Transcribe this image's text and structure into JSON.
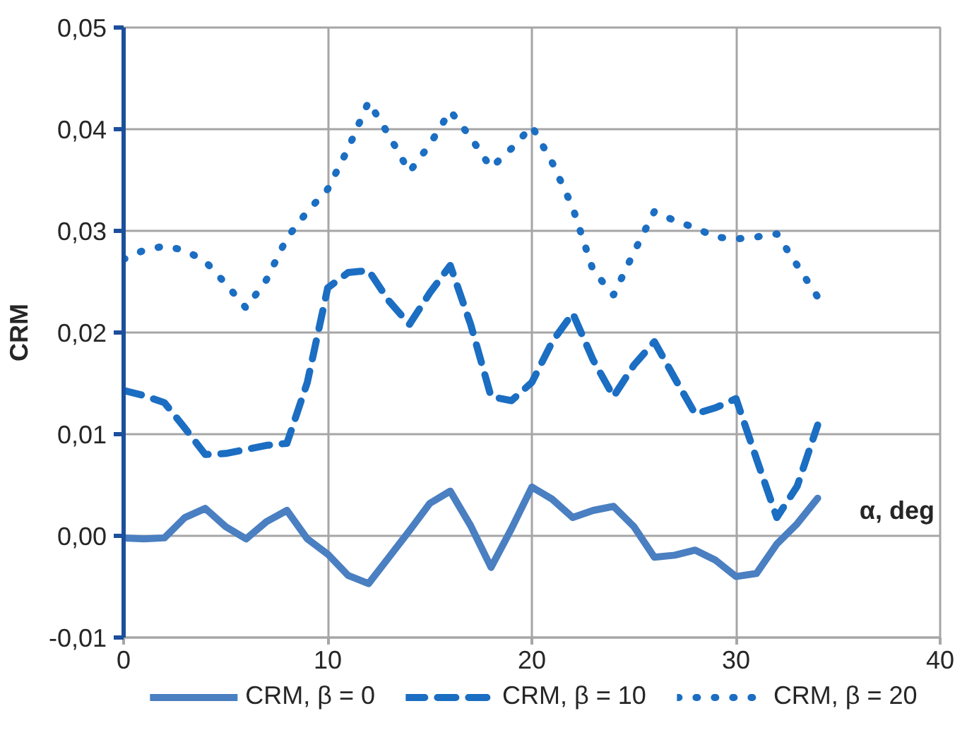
{
  "chart_data": {
    "type": "line",
    "xlabel": "α, deg",
    "ylabel": "CRM",
    "x": [
      0,
      1,
      2,
      3,
      4,
      5,
      6,
      7,
      8,
      9,
      10,
      11,
      12,
      13,
      14,
      15,
      16,
      17,
      18,
      19,
      20,
      21,
      22,
      23,
      24,
      25,
      26,
      27,
      28,
      29,
      30,
      31,
      32,
      33,
      34
    ],
    "xlim": [
      0,
      40
    ],
    "xticks": [
      0,
      10,
      20,
      30,
      40
    ],
    "ylim": [
      -0.01,
      0.05
    ],
    "yticks": [
      {
        "value": -0.01,
        "label": "-0,01"
      },
      {
        "value": 0,
        "label": "0,00"
      },
      {
        "value": 0.01,
        "label": "0,01"
      },
      {
        "value": 0.02,
        "label": "0,02"
      },
      {
        "value": 0.03,
        "label": "0,03"
      },
      {
        "value": 0.04,
        "label": "0,04"
      },
      {
        "value": 0.05,
        "label": "0,05"
      }
    ],
    "grid": true,
    "legend": "bottom",
    "series": [
      {
        "name": "CRM, β = 0",
        "color": "#4a7fc1",
        "line_style": "solid",
        "values": [
          -0.0002,
          -0.0003,
          -0.0002,
          0.0018,
          0.0027,
          0.0009,
          -0.0003,
          0.0014,
          0.0025,
          -0.0003,
          -0.0018,
          -0.0039,
          -0.0047,
          -0.0021,
          0.0005,
          0.0032,
          0.0044,
          0.001,
          -0.0031,
          0.0007,
          0.0048,
          0.0036,
          0.0018,
          0.0025,
          0.0029,
          0.0009,
          -0.0021,
          -0.0019,
          -0.0014,
          -0.0024,
          -0.004,
          -0.0037,
          -0.0008,
          0.0012,
          0.0037
        ]
      },
      {
        "name": "CRM, β = 10",
        "color": "#1b6ec2",
        "line_style": "dashed",
        "values": [
          0.0143,
          0.0138,
          0.0131,
          0.0106,
          0.008,
          0.0081,
          0.0085,
          0.0089,
          0.0091,
          0.0151,
          0.0244,
          0.0259,
          0.0261,
          0.0231,
          0.0208,
          0.0239,
          0.0266,
          0.0208,
          0.0137,
          0.0133,
          0.0151,
          0.0191,
          0.0219,
          0.0173,
          0.0137,
          0.0168,
          0.0191,
          0.0155,
          0.012,
          0.0126,
          0.0135,
          0.0076,
          0.0018,
          0.0049,
          0.0109
        ]
      },
      {
        "name": "CRM, β = 20",
        "color": "#1b6ec2",
        "line_style": "dotted",
        "values": [
          0.0272,
          0.0281,
          0.0285,
          0.0281,
          0.027,
          0.0248,
          0.0224,
          0.0252,
          0.0293,
          0.0319,
          0.0341,
          0.0381,
          0.0427,
          0.0394,
          0.0358,
          0.0385,
          0.0418,
          0.0392,
          0.0362,
          0.0381,
          0.0403,
          0.0367,
          0.0323,
          0.0261,
          0.0237,
          0.0279,
          0.0319,
          0.031,
          0.0303,
          0.0294,
          0.0292,
          0.0294,
          0.0297,
          0.0266,
          0.0235
        ]
      }
    ]
  }
}
